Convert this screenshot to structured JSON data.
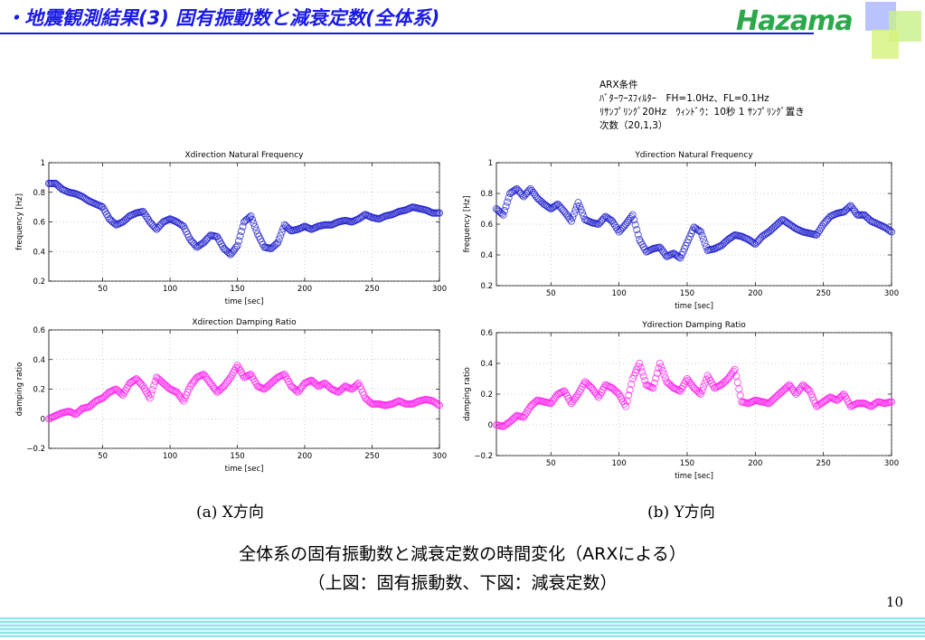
{
  "slide": {
    "title": "・地震観測結果(3) 固有振動数と減衰定数(全体系)",
    "logo_text": "Hazama",
    "page_number": "10",
    "summary_line1": "全体系の固有振動数と減衰定数の時間変化（ARXによる）",
    "summary_line2": "（上図：固有振動数、下図：減衰定数）",
    "caption_x": "(a) X方向",
    "caption_y": "(b) Y方向",
    "colors": {
      "title": "#1a1ae6",
      "frequency_series": "#1f1fcc",
      "damping_series": "#ff22ee",
      "logo": "#2aa84a"
    }
  },
  "arx_conditions": {
    "heading": "ARX条件",
    "filter": "ﾊﾞﾀｰﾜｰｽﾌｨﾙﾀｰ　FH=1.0Hz、FL=0.1Hz",
    "sampling": "ﾘｻﾝﾌﾟﾘﾝｸﾞ20Hz　ｳｨﾝﾄﾞｳ：10秒 1 ｻﾝﾌﾟﾘﾝｸﾞ置き",
    "order": "次数（20,1,3）"
  },
  "chart_data": [
    {
      "id": "x-freq",
      "type": "scatter",
      "title": "Xdirection Natural Frequency",
      "xlabel": "time [sec]",
      "ylabel": "frequency [Hz]",
      "xlim": [
        10,
        300
      ],
      "ylim": [
        0.2,
        1.0
      ],
      "xticks": [
        50,
        100,
        150,
        200,
        250,
        300
      ],
      "yticks": [
        0.2,
        0.4,
        0.6,
        0.8,
        1.0
      ],
      "ytick_labels": [
        "0.2",
        "0.4",
        "0.6",
        "0.8",
        "1"
      ],
      "grid": true,
      "color": "#1f1fcc",
      "series": [
        {
          "x": [
            10,
            15,
            20,
            25,
            30,
            35,
            40,
            45,
            50,
            55,
            60,
            65,
            70,
            75,
            80,
            85,
            90,
            95,
            100,
            105,
            110,
            115,
            120,
            125,
            130,
            135,
            140,
            145,
            150,
            155,
            160,
            165,
            170,
            175,
            180,
            185,
            190,
            195,
            200,
            205,
            210,
            215,
            220,
            225,
            230,
            235,
            240,
            245,
            250,
            255,
            260,
            265,
            270,
            275,
            280,
            285,
            290,
            295,
            300
          ],
          "y": [
            0.86,
            0.86,
            0.82,
            0.8,
            0.79,
            0.77,
            0.74,
            0.72,
            0.7,
            0.62,
            0.58,
            0.6,
            0.64,
            0.66,
            0.67,
            0.6,
            0.55,
            0.6,
            0.62,
            0.6,
            0.57,
            0.48,
            0.43,
            0.46,
            0.51,
            0.5,
            0.42,
            0.38,
            0.44,
            0.6,
            0.64,
            0.52,
            0.43,
            0.42,
            0.46,
            0.58,
            0.54,
            0.55,
            0.57,
            0.55,
            0.57,
            0.58,
            0.58,
            0.6,
            0.61,
            0.6,
            0.62,
            0.65,
            0.63,
            0.62,
            0.64,
            0.65,
            0.67,
            0.68,
            0.7,
            0.69,
            0.68,
            0.66,
            0.66
          ]
        }
      ]
    },
    {
      "id": "y-freq",
      "type": "scatter",
      "title": "Ydirection Natural Frequency",
      "xlabel": "time [sec]",
      "ylabel": "frequency [Hz]",
      "xlim": [
        10,
        300
      ],
      "ylim": [
        0.2,
        1.0
      ],
      "xticks": [
        50,
        100,
        150,
        200,
        250,
        300
      ],
      "yticks": [
        0.2,
        0.4,
        0.6,
        0.8,
        1.0
      ],
      "ytick_labels": [
        "0.2",
        "0.4",
        "0.6",
        "0.8",
        "1"
      ],
      "grid": true,
      "color": "#1f1fcc",
      "series": [
        {
          "x": [
            10,
            15,
            20,
            25,
            30,
            35,
            40,
            45,
            50,
            55,
            60,
            65,
            70,
            75,
            80,
            85,
            90,
            95,
            100,
            105,
            110,
            115,
            120,
            125,
            130,
            135,
            140,
            145,
            150,
            155,
            160,
            165,
            170,
            175,
            180,
            185,
            190,
            195,
            200,
            205,
            210,
            215,
            220,
            225,
            230,
            235,
            240,
            245,
            250,
            255,
            260,
            265,
            270,
            275,
            280,
            285,
            290,
            295,
            300
          ],
          "y": [
            0.7,
            0.66,
            0.8,
            0.83,
            0.78,
            0.83,
            0.77,
            0.73,
            0.7,
            0.73,
            0.68,
            0.62,
            0.74,
            0.63,
            0.61,
            0.6,
            0.65,
            0.62,
            0.55,
            0.6,
            0.66,
            0.5,
            0.42,
            0.44,
            0.45,
            0.39,
            0.41,
            0.38,
            0.48,
            0.58,
            0.55,
            0.43,
            0.44,
            0.46,
            0.5,
            0.53,
            0.52,
            0.5,
            0.47,
            0.52,
            0.55,
            0.59,
            0.63,
            0.6,
            0.57,
            0.55,
            0.54,
            0.53,
            0.6,
            0.65,
            0.67,
            0.68,
            0.72,
            0.66,
            0.66,
            0.62,
            0.6,
            0.58,
            0.55
          ]
        }
      ]
    },
    {
      "id": "x-damp",
      "type": "scatter",
      "title": "Xdirection Damping Ratio",
      "xlabel": "time [sec]",
      "ylabel": "damping ratio",
      "xlim": [
        10,
        300
      ],
      "ylim": [
        -0.2,
        0.6
      ],
      "xticks": [
        50,
        100,
        150,
        200,
        250,
        300
      ],
      "yticks": [
        -0.2,
        0,
        0.2,
        0.4,
        0.6
      ],
      "ytick_labels": [
        "−0.2",
        "0",
        "0.2",
        "0.4",
        "0.6"
      ],
      "grid": true,
      "color": "#ff22ee",
      "series": [
        {
          "x": [
            10,
            15,
            20,
            25,
            30,
            35,
            40,
            45,
            50,
            55,
            60,
            65,
            70,
            75,
            80,
            85,
            90,
            95,
            100,
            105,
            110,
            115,
            120,
            125,
            130,
            135,
            140,
            145,
            150,
            155,
            160,
            165,
            170,
            175,
            180,
            185,
            190,
            195,
            200,
            205,
            210,
            215,
            220,
            225,
            230,
            235,
            240,
            245,
            250,
            255,
            260,
            265,
            270,
            275,
            280,
            285,
            290,
            295,
            300
          ],
          "y": [
            0.0,
            0.02,
            0.04,
            0.05,
            0.03,
            0.07,
            0.08,
            0.12,
            0.14,
            0.18,
            0.2,
            0.16,
            0.24,
            0.27,
            0.22,
            0.14,
            0.28,
            0.24,
            0.2,
            0.18,
            0.12,
            0.22,
            0.28,
            0.3,
            0.24,
            0.18,
            0.22,
            0.28,
            0.36,
            0.28,
            0.3,
            0.22,
            0.2,
            0.24,
            0.28,
            0.3,
            0.22,
            0.18,
            0.24,
            0.26,
            0.22,
            0.24,
            0.2,
            0.18,
            0.22,
            0.2,
            0.24,
            0.14,
            0.1,
            0.1,
            0.09,
            0.1,
            0.12,
            0.1,
            0.1,
            0.12,
            0.13,
            0.12,
            0.09
          ]
        }
      ]
    },
    {
      "id": "y-damp",
      "type": "scatter",
      "title": "Ydirection Damping Ratio",
      "xlabel": "time [sec]",
      "ylabel": "damping ratio",
      "xlim": [
        10,
        300
      ],
      "ylim": [
        -0.2,
        0.6
      ],
      "xticks": [
        50,
        100,
        150,
        200,
        250,
        300
      ],
      "yticks": [
        -0.2,
        0,
        0.2,
        0.4,
        0.6
      ],
      "ytick_labels": [
        "−0.2",
        "0",
        "0.2",
        "0.4",
        "0.6"
      ],
      "grid": true,
      "color": "#ff22ee",
      "series": [
        {
          "x": [
            10,
            15,
            20,
            25,
            30,
            35,
            40,
            45,
            50,
            55,
            60,
            65,
            70,
            75,
            80,
            85,
            90,
            95,
            100,
            105,
            110,
            115,
            120,
            125,
            130,
            135,
            140,
            145,
            150,
            155,
            160,
            165,
            170,
            175,
            180,
            185,
            190,
            195,
            200,
            205,
            210,
            215,
            220,
            225,
            230,
            235,
            240,
            245,
            250,
            255,
            260,
            265,
            270,
            275,
            280,
            285,
            290,
            295,
            300
          ],
          "y": [
            0.0,
            -0.01,
            0.02,
            0.06,
            0.05,
            0.12,
            0.16,
            0.15,
            0.14,
            0.2,
            0.22,
            0.14,
            0.2,
            0.28,
            0.24,
            0.18,
            0.26,
            0.24,
            0.2,
            0.12,
            0.3,
            0.4,
            0.26,
            0.24,
            0.4,
            0.28,
            0.24,
            0.22,
            0.3,
            0.24,
            0.2,
            0.32,
            0.24,
            0.26,
            0.3,
            0.36,
            0.15,
            0.14,
            0.16,
            0.15,
            0.14,
            0.18,
            0.22,
            0.26,
            0.2,
            0.26,
            0.22,
            0.12,
            0.15,
            0.18,
            0.16,
            0.2,
            0.12,
            0.14,
            0.14,
            0.12,
            0.15,
            0.14,
            0.15
          ]
        }
      ]
    }
  ]
}
